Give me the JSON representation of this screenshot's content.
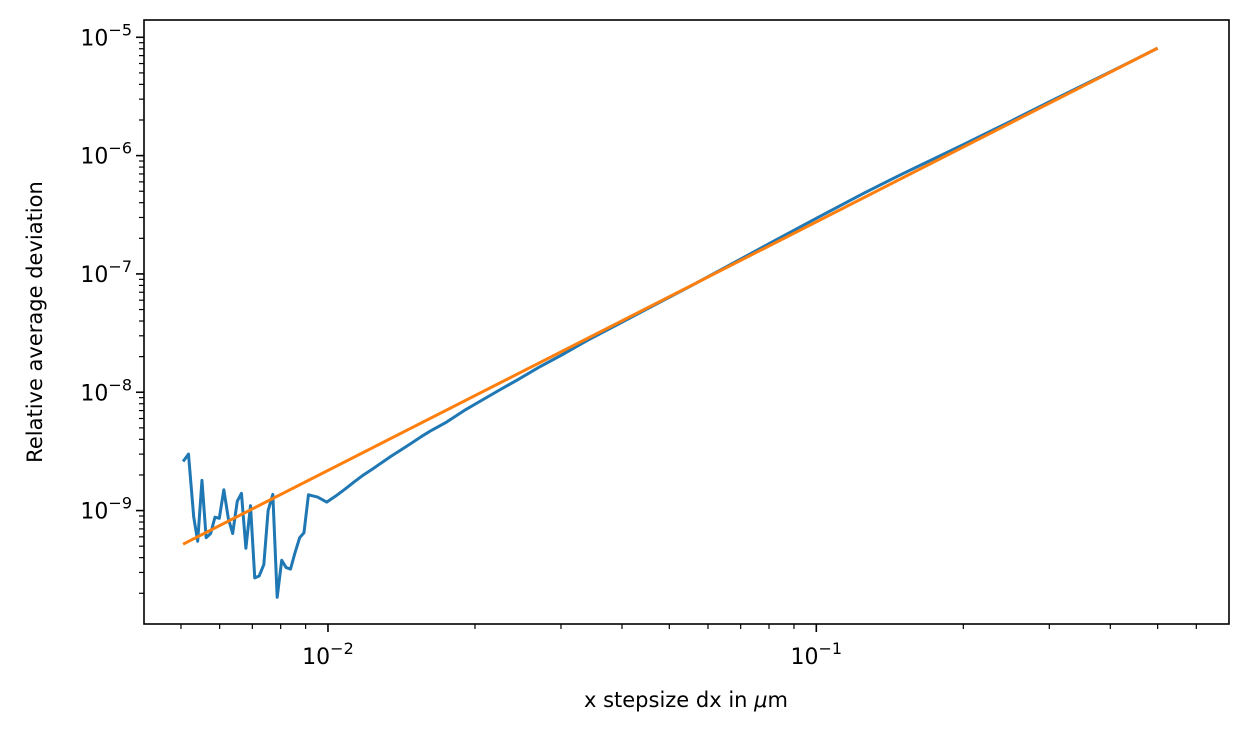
{
  "chart_data": {
    "type": "line",
    "title": "",
    "xlabel_prefix": "x stepsize dx in ",
    "xlabel_math": "μ",
    "xlabel_suffix": "m",
    "ylabel": "Relative average deviation",
    "xscale": "log",
    "yscale": "log",
    "xlim": [
      0.0042,
      0.7
    ],
    "ylim": [
      1.1e-10,
      1.4e-05
    ],
    "grid": false,
    "legend": "none",
    "x_ticks": [
      {
        "value": 0.01,
        "base": "10",
        "exp": "−2"
      },
      {
        "value": 0.1,
        "base": "10",
        "exp": "−1"
      }
    ],
    "y_ticks": [
      {
        "value": 1e-09,
        "base": "10",
        "exp": "−9"
      },
      {
        "value": 1e-08,
        "base": "10",
        "exp": "−8"
      },
      {
        "value": 1e-07,
        "base": "10",
        "exp": "−7"
      },
      {
        "value": 1e-06,
        "base": "10",
        "exp": "−6"
      },
      {
        "value": 1e-05,
        "base": "10",
        "exp": "−5"
      }
    ],
    "series": [
      {
        "color": "#1f77b4",
        "x": [
          0.00505,
          0.00518,
          0.00531,
          0.00541,
          0.00552,
          0.00563,
          0.00575,
          0.00587,
          0.00599,
          0.00612,
          0.00625,
          0.00638,
          0.00652,
          0.00665,
          0.00679,
          0.00694,
          0.00708,
          0.00723,
          0.00739,
          0.00754,
          0.00771,
          0.00787,
          0.00804,
          0.00821,
          0.00838,
          0.00856,
          0.00875,
          0.00893,
          0.00912,
          0.00952,
          0.00994,
          0.01038,
          0.01084,
          0.01132,
          0.01182,
          0.01235,
          0.0129,
          0.0135,
          0.0141,
          0.0148,
          0.0155,
          0.0162,
          0.0175,
          0.019,
          0.0207,
          0.0225,
          0.0245,
          0.027,
          0.03,
          0.034,
          0.039,
          0.046,
          0.055,
          0.066,
          0.08,
          0.1,
          0.125,
          0.15,
          0.175,
          0.2,
          0.25,
          0.3,
          0.35,
          0.4,
          0.45,
          0.5
        ],
        "y": [
          2.6e-09,
          3e-09,
          8.8e-10,
          5.5e-10,
          1.8e-09,
          5.9e-10,
          6.4e-10,
          8.8e-10,
          8.6e-10,
          1.5e-09,
          8.6e-10,
          6.4e-10,
          1.2e-09,
          1.4e-09,
          4.8e-10,
          1.1e-09,
          2.7e-10,
          2.8e-10,
          3.5e-10,
          1e-09,
          1.37e-09,
          1.85e-10,
          3.8e-10,
          3.3e-10,
          3.2e-10,
          4.4e-10,
          5.9e-10,
          6.5e-10,
          1.36e-09,
          1.3e-09,
          1.18e-09,
          1.33e-09,
          1.52e-09,
          1.75e-09,
          2e-09,
          2.25e-09,
          2.55e-09,
          2.9e-09,
          3.25e-09,
          3.7e-09,
          4.2e-09,
          4.7e-09,
          5.6e-09,
          7e-09,
          8.6e-09,
          1.05e-08,
          1.28e-08,
          1.62e-08,
          2.05e-08,
          2.75e-08,
          3.7e-08,
          5.3e-08,
          7.8e-08,
          1.17e-07,
          1.8e-07,
          2.95e-07,
          4.8e-07,
          7e-07,
          9.5e-07,
          1.24e-06,
          1.95e-06,
          2.85e-06,
          3.9e-06,
          5.1e-06,
          6.5e-06,
          8.1e-06
        ]
      },
      {
        "color": "#ff7f0e",
        "x": [
          0.00505,
          0.5
        ],
        "y": [
          5.2e-10,
          8.1e-06
        ]
      }
    ]
  }
}
